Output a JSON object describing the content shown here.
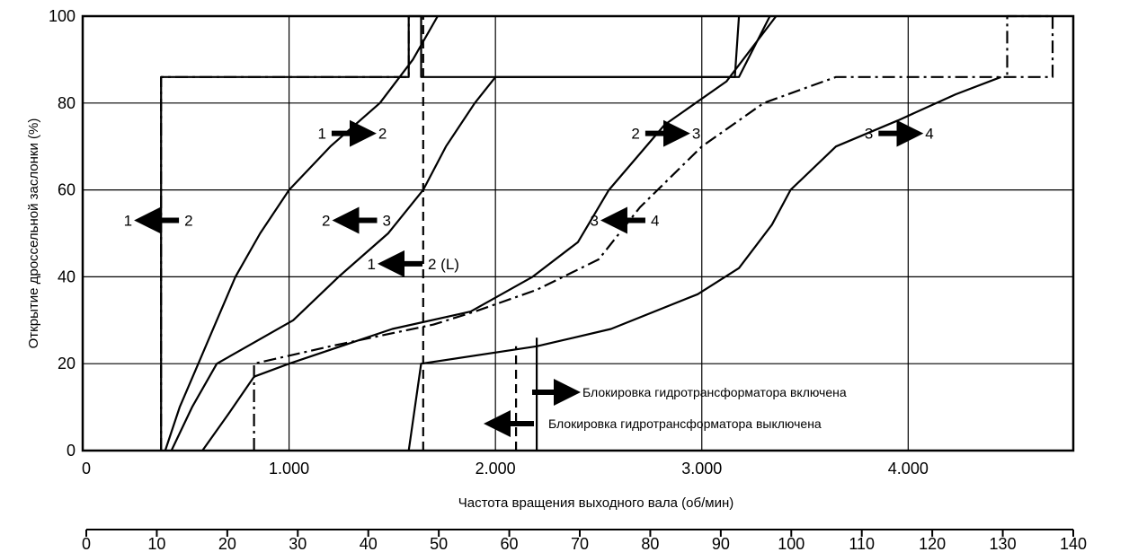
{
  "chart_data": {
    "type": "line",
    "xlabel": "Частота вращения выходного вала (об/мин)",
    "ylabel": "Открытие дроссельной заслонки (%)",
    "xlim": [
      0,
      4800
    ],
    "ylim": [
      0,
      100
    ],
    "x_ticks": [
      "0",
      "1.000",
      "2.000",
      "3.000",
      "4.000"
    ],
    "x_tick_values": [
      0,
      1000,
      2000,
      3000,
      4000
    ],
    "y_ticks": [
      "0",
      "20",
      "40",
      "60",
      "80",
      "100"
    ],
    "y_tick_values": [
      0,
      20,
      40,
      60,
      80,
      100
    ],
    "grid": true,
    "secondary_axis": {
      "ticks": [
        "0",
        "10",
        "20",
        "30",
        "40",
        "50",
        "60",
        "70",
        "80",
        "90",
        "100",
        "110",
        "120",
        "130",
        "140"
      ],
      "tick_values": [
        0,
        10,
        20,
        30,
        40,
        50,
        60,
        70,
        80,
        90,
        100,
        110,
        120,
        130,
        140
      ],
      "range": [
        0,
        140
      ]
    },
    "series": [
      {
        "style": "dash-dot",
        "points": [
          [
            380,
            0
          ],
          [
            380,
            86
          ],
          [
            1580,
            86
          ],
          [
            1580,
            100
          ]
        ]
      },
      {
        "style": "solid",
        "points": [
          [
            400,
            0
          ],
          [
            470,
            10
          ],
          [
            560,
            20
          ],
          [
            650,
            30
          ],
          [
            740,
            40
          ],
          [
            860,
            50
          ],
          [
            1000,
            60
          ],
          [
            1200,
            70
          ],
          [
            1440,
            80
          ],
          [
            1600,
            90
          ],
          [
            1720,
            100
          ]
        ]
      },
      {
        "style": "solid",
        "points": [
          [
            430,
            0
          ],
          [
            530,
            10
          ],
          [
            650,
            20
          ],
          [
            1020,
            30
          ],
          [
            1240,
            40
          ],
          [
            1480,
            50
          ],
          [
            1650,
            60
          ],
          [
            1760,
            70
          ],
          [
            1900,
            80
          ],
          [
            2000,
            86
          ],
          [
            3180,
            86
          ],
          [
            3330,
            100
          ]
        ]
      },
      {
        "style": "solid",
        "points": [
          [
            380,
            0
          ],
          [
            380,
            86
          ],
          [
            1580,
            86
          ],
          [
            1580,
            100
          ],
          [
            1640,
            100
          ],
          [
            1640,
            86
          ],
          [
            3160,
            86
          ],
          [
            3180,
            100
          ]
        ]
      },
      {
        "style": "solid",
        "points": [
          [
            580,
            0
          ],
          [
            700,
            8
          ],
          [
            830,
            17
          ],
          [
            1000,
            20
          ],
          [
            1500,
            28
          ],
          [
            1880,
            32
          ],
          [
            2180,
            40
          ],
          [
            2400,
            48
          ],
          [
            2550,
            60
          ],
          [
            2820,
            75
          ],
          [
            3120,
            85
          ],
          [
            3360,
            100
          ]
        ]
      },
      {
        "style": "dash-dot",
        "points": [
          [
            830,
            0
          ],
          [
            830,
            20
          ],
          [
            1200,
            24
          ],
          [
            1700,
            29
          ],
          [
            1900,
            32
          ],
          [
            2200,
            37
          ],
          [
            2500,
            44
          ],
          [
            2700,
            56
          ],
          [
            3000,
            70
          ],
          [
            3300,
            80
          ],
          [
            3650,
            86
          ],
          [
            4700,
            86
          ],
          [
            4700,
            100
          ],
          [
            4480,
            100
          ],
          [
            4480,
            86
          ]
        ]
      },
      {
        "style": "solid",
        "points": [
          [
            1580,
            0
          ],
          [
            1640,
            20
          ],
          [
            2200,
            24
          ],
          [
            2560,
            28
          ],
          [
            2980,
            36
          ],
          [
            3180,
            42
          ],
          [
            3340,
            52
          ],
          [
            3430,
            60
          ],
          [
            3650,
            70
          ],
          [
            3950,
            76
          ],
          [
            4230,
            82
          ],
          [
            4450,
            86
          ]
        ]
      },
      {
        "style": "dash",
        "points": [
          [
            1650,
            0
          ],
          [
            1650,
            100
          ]
        ]
      },
      {
        "style": "dash",
        "points": [
          [
            2100,
            0
          ],
          [
            2100,
            24
          ]
        ]
      },
      {
        "style": "solid",
        "points": [
          [
            2200,
            0
          ],
          [
            2200,
            26
          ]
        ]
      }
    ],
    "annotations": [
      {
        "from": "1",
        "to": "2",
        "direction": "right",
        "x": 1180,
        "y": 73
      },
      {
        "from": "2",
        "to": "3",
        "direction": "right",
        "x": 2700,
        "y": 73
      },
      {
        "from": "3",
        "to": "4",
        "direction": "right",
        "x": 3830,
        "y": 73
      },
      {
        "from": "1",
        "to": "2",
        "direction": "left",
        "x": 240,
        "y": 53
      },
      {
        "from": "2",
        "to": "3",
        "direction": "left",
        "x": 1200,
        "y": 53
      },
      {
        "from": "3",
        "to": "4",
        "direction": "left",
        "x": 2500,
        "y": 53
      },
      {
        "from": "1",
        "to": "2 (L)",
        "direction": "left",
        "x": 1420,
        "y": 43
      }
    ],
    "legend": [
      {
        "label": "Блокировка гидротрансформатора включена",
        "direction": "right"
      },
      {
        "label": "Блокировка гидротрансформатора выключена",
        "direction": "left"
      }
    ]
  }
}
